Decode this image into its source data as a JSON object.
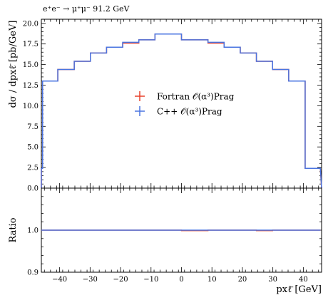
{
  "chart_data": {
    "type": "line",
    "title": "e⁺e⁻ → μ⁺μ⁻ 91.2 GeV",
    "xlabel": "pxℓ̄ [GeV]",
    "ylabel": "dσ / dpxℓ̄ [pb/GeV]",
    "ratio_ylabel": "Ratio",
    "xlim": [
      -46,
      46
    ],
    "ylim": [
      0,
      20.5
    ],
    "ratio_ylim": [
      0.9,
      1.1
    ],
    "x_ticks": [
      -40,
      -30,
      -20,
      -10,
      0,
      10,
      20,
      30,
      40
    ],
    "x_tick_labels": [
      "−40",
      "−30",
      "−20",
      "−10",
      "0",
      "10",
      "20",
      "30",
      "40"
    ],
    "y_ticks": [
      0,
      2.5,
      5,
      7.5,
      10,
      12.5,
      15,
      17.5,
      20
    ],
    "y_tick_labels": [
      "0.0",
      "2.5",
      "5.0",
      "7.5",
      "10.0",
      "12.5",
      "15.0",
      "17.5",
      "20.0"
    ],
    "ratio_y_ticks": [
      0.9,
      1.0
    ],
    "ratio_y_tick_labels": [
      "0.9",
      "1.0"
    ],
    "bin_edges": [
      -46,
      -45.6,
      -40.6,
      -35.2,
      -29.9,
      -24.6,
      -19.3,
      -14.0,
      -8.7,
      0,
      8.7,
      14.0,
      19.3,
      24.6,
      29.9,
      35.2,
      40.6,
      45.6,
      46
    ],
    "series": [
      {
        "name": "Fortran 𝒪(α³)Prag",
        "color": "#e8402a",
        "values": [
          2.4,
          13.0,
          14.4,
          15.4,
          16.4,
          17.1,
          17.6,
          18.0,
          18.7,
          18.0,
          17.6,
          17.1,
          16.4,
          15.4,
          14.4,
          13.0,
          2.4
        ],
        "ratio": [
          1.0,
          1.0,
          1.0,
          1.0,
          1.0,
          1.0,
          1.0,
          1.0,
          1.0,
          0.999,
          1.0,
          1.0,
          1.0,
          0.999,
          1.0,
          1.0,
          1.0
        ]
      },
      {
        "name": "C++ 𝒪(α³)Prag",
        "color": "#4a74e0",
        "values": [
          2.4,
          13.0,
          14.4,
          15.4,
          16.4,
          17.1,
          17.7,
          18.0,
          18.7,
          18.0,
          17.7,
          17.1,
          16.4,
          15.4,
          14.4,
          13.0,
          2.4
        ],
        "ratio": [
          1.0,
          1.0,
          1.0,
          1.0,
          1.0,
          1.0,
          1.0,
          1.0,
          1.0,
          1.0,
          1.0,
          1.0,
          1.0,
          1.0,
          1.0,
          1.0,
          1.0
        ]
      }
    ],
    "legend_position": "center",
    "grid": false
  }
}
